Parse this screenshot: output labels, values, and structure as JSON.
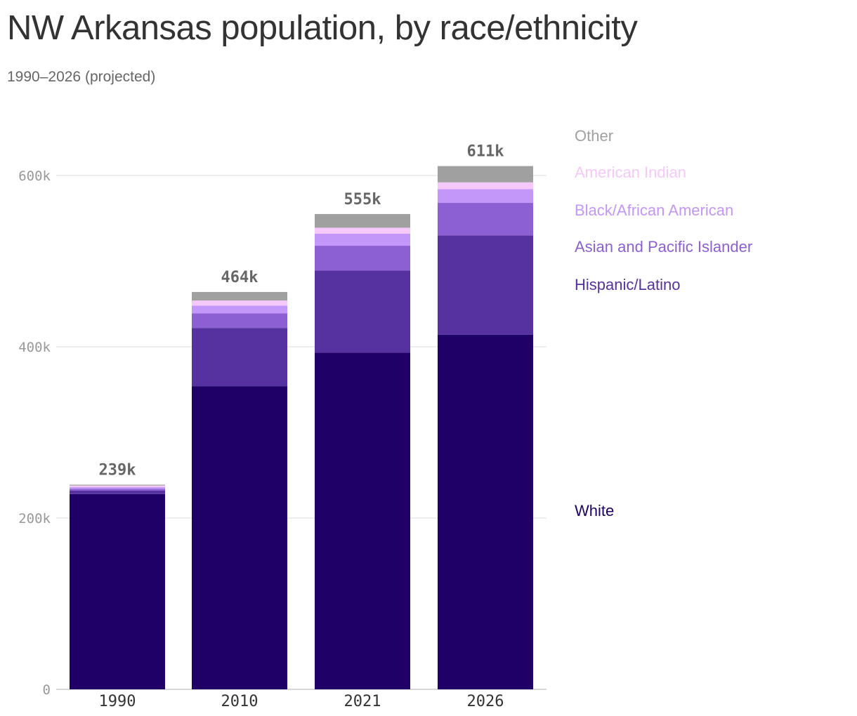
{
  "header": {
    "title": "NW Arkansas population, by race/ethnicity",
    "subtitle": "1990–2026 (projected)"
  },
  "chart_data": {
    "type": "bar",
    "stacked": true,
    "title": "NW Arkansas population, by race/ethnicity",
    "subtitle": "1990–2026 (projected)",
    "categories": [
      "1990",
      "2010",
      "2021",
      "2026"
    ],
    "totals_labels": [
      "239k",
      "464k",
      "555k",
      "611k"
    ],
    "ylim": [
      0,
      640000
    ],
    "yticks": [
      {
        "value": 0,
        "label": "0"
      },
      {
        "value": 200000,
        "label": "200k"
      },
      {
        "value": 400000,
        "label": "400k"
      },
      {
        "value": 600000,
        "label": "600k"
      }
    ],
    "grid": true,
    "legend": "right",
    "series": [
      {
        "name": "White",
        "color": "#1f0066",
        "values": [
          228000,
          354000,
          393000,
          414000
        ]
      },
      {
        "name": "Hispanic/Latino",
        "color": "#5632a0",
        "values": [
          4000,
          68000,
          96000,
          116000
        ]
      },
      {
        "name": "Asian and Pacific Islander",
        "color": "#8c5fd2",
        "values": [
          2000,
          17000,
          29000,
          38000
        ]
      },
      {
        "name": "Black/African American",
        "color": "#c396fa",
        "values": [
          2000,
          9000,
          14000,
          16000
        ]
      },
      {
        "name": "American Indian",
        "color": "#f5c8fa",
        "values": [
          2000,
          6000,
          7000,
          8000
        ]
      },
      {
        "name": "Other",
        "color": "#a0a0a0",
        "values": [
          1000,
          10000,
          16000,
          19000
        ]
      }
    ]
  }
}
